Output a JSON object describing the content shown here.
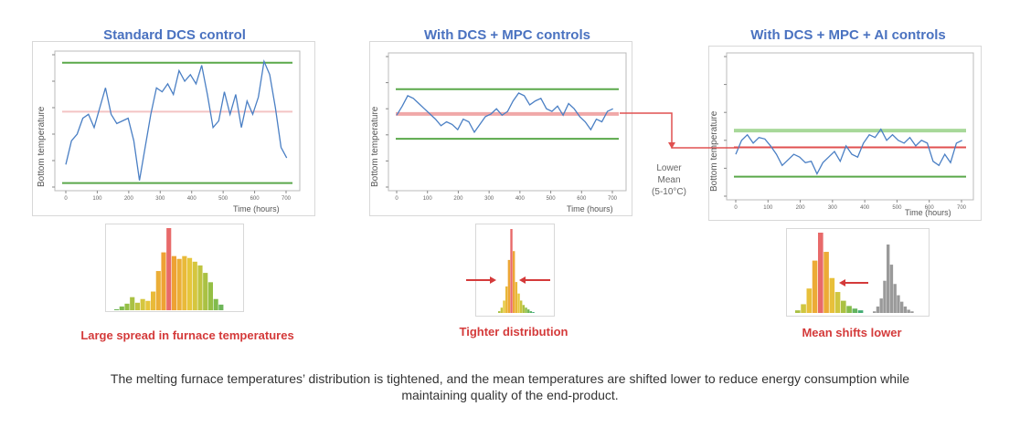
{
  "footer": [
    "The melting furnace temperatures’ distribution is tightened, and the mean temperatures are shifted lower to reduce energy consumption while",
    "maintaining quality of the end-product."
  ],
  "annotation": {
    "lines": [
      "Lower",
      "Mean",
      "(5-10°C)"
    ],
    "color": "#d43a3a"
  },
  "colors": {
    "series": "#4a7fc4",
    "limit": "#5aa84a",
    "mean": "#e05050",
    "title": "#4a72c0",
    "caption": "#d43a3a"
  },
  "chart_data": [
    {
      "type": "line",
      "title": "Standard DCS control",
      "xlabel": "Time (hours)",
      "ylabel": "Bottom temperature",
      "xlim": [
        0,
        720
      ],
      "ylim": [
        0,
        100
      ],
      "xticks": [
        "0",
        "100",
        "200",
        "300",
        "400",
        "500",
        "600",
        "700"
      ],
      "upper_limit": 94,
      "lower_limit": 3,
      "mean": 57,
      "mean_color": "#f4c4c4",
      "upper_color": "#5aa84a",
      "x": [
        0,
        18,
        36,
        54,
        72,
        90,
        108,
        126,
        144,
        162,
        180,
        198,
        216,
        234,
        252,
        270,
        288,
        306,
        324,
        342,
        360,
        378,
        396,
        414,
        432,
        450,
        468,
        486,
        504,
        522,
        540,
        558,
        576,
        594,
        612,
        630,
        648,
        666,
        684,
        702
      ],
      "y": [
        17,
        35,
        40,
        52,
        55,
        45,
        60,
        75,
        55,
        48,
        50,
        52,
        35,
        5,
        30,
        55,
        75,
        72,
        78,
        70,
        88,
        80,
        85,
        78,
        92,
        70,
        45,
        50,
        72,
        55,
        70,
        45,
        65,
        55,
        68,
        95,
        85,
        60,
        30,
        22
      ]
    },
    {
      "type": "line",
      "title": "With DCS + MPC controls",
      "xlabel": "Time (hours)",
      "ylabel": "Bottom temperature",
      "xlim": [
        0,
        720
      ],
      "ylim": [
        0,
        100
      ],
      "xticks": [
        "0",
        "100",
        "200",
        "300",
        "400",
        "500",
        "600",
        "700"
      ],
      "upper_limit": 75,
      "lower_limit": 37,
      "mean": 56,
      "mean_color": "#f0a8a8",
      "upper_color": "#5aa84a",
      "x": [
        0,
        18,
        36,
        54,
        72,
        90,
        108,
        126,
        144,
        162,
        180,
        198,
        216,
        234,
        252,
        270,
        288,
        306,
        324,
        342,
        360,
        378,
        396,
        414,
        432,
        450,
        468,
        486,
        504,
        522,
        540,
        558,
        576,
        594,
        612,
        630,
        648,
        666,
        684,
        702
      ],
      "y": [
        55,
        62,
        70,
        68,
        64,
        60,
        56,
        52,
        47,
        50,
        48,
        44,
        52,
        50,
        42,
        48,
        54,
        56,
        60,
        55,
        58,
        66,
        72,
        70,
        63,
        66,
        68,
        60,
        58,
        62,
        55,
        64,
        60,
        54,
        50,
        44,
        52,
        50,
        58,
        60
      ]
    },
    {
      "type": "line",
      "title": "With DCS + MPC + AI controls",
      "xlabel": "Time (hours)",
      "ylabel": "Bottom temperature",
      "xlim": [
        0,
        720
      ],
      "ylim": [
        0,
        100
      ],
      "xticks": [
        "0",
        "100",
        "200",
        "300",
        "400",
        "500",
        "600",
        "700"
      ],
      "upper_limit": 47,
      "lower_limit": 14,
      "mean": 35,
      "mean_color": "#e05050",
      "upper_color": "#a8d89a",
      "x": [
        0,
        18,
        36,
        54,
        72,
        90,
        108,
        126,
        144,
        162,
        180,
        198,
        216,
        234,
        252,
        270,
        288,
        306,
        324,
        342,
        360,
        378,
        396,
        414,
        432,
        450,
        468,
        486,
        504,
        522,
        540,
        558,
        576,
        594,
        612,
        630,
        648,
        666,
        684,
        702
      ],
      "y": [
        30,
        40,
        44,
        38,
        42,
        41,
        36,
        30,
        22,
        26,
        30,
        28,
        24,
        25,
        16,
        24,
        28,
        32,
        25,
        36,
        30,
        28,
        38,
        44,
        42,
        48,
        40,
        44,
        40,
        38,
        42,
        36,
        40,
        38,
        25,
        22,
        30,
        24,
        38,
        40
      ]
    },
    {
      "type": "bar",
      "caption": "Large spread in furnace temperatures",
      "values": [
        1,
        4,
        7,
        14,
        8,
        12,
        10,
        20,
        42,
        62,
        88,
        58,
        55,
        58,
        56,
        52,
        48,
        40,
        30,
        12,
        6
      ],
      "highlight_index": 10
    },
    {
      "type": "bar",
      "caption": "Tighter distribution",
      "values": [
        2,
        6,
        14,
        30,
        60,
        95,
        70,
        35,
        22,
        14,
        9,
        6,
        4,
        2,
        1
      ],
      "highlight_index": 5
    },
    {
      "type": "bar",
      "caption": "Mean shifts lower",
      "values": [
        3,
        10,
        28,
        60,
        92,
        70,
        40,
        24,
        14,
        8,
        5,
        3
      ],
      "highlight_index": 4,
      "shifted_values": [
        2,
        8,
        18,
        40,
        85,
        60,
        36,
        22,
        14,
        8,
        4,
        2
      ],
      "shifted_color": "#9a9a9a"
    }
  ]
}
